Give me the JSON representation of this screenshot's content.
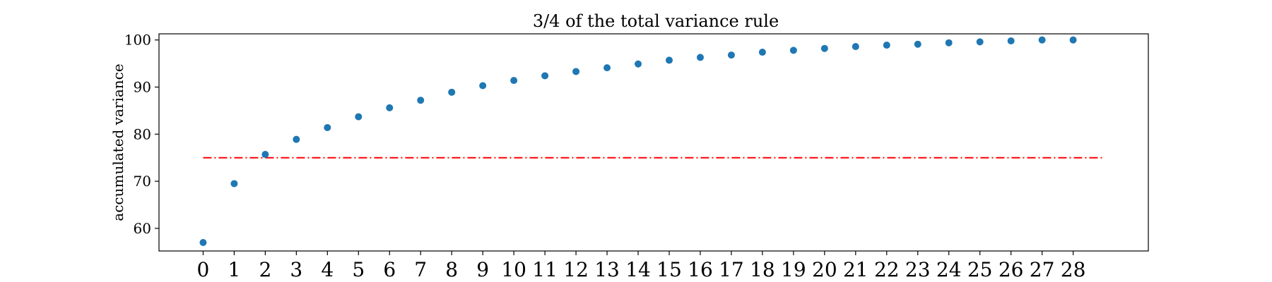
{
  "chart_data": {
    "type": "scatter",
    "title": "3/4 of the total variance rule",
    "xlabel": "",
    "ylabel": "accumulated variance",
    "x": [
      0,
      1,
      2,
      3,
      4,
      5,
      6,
      7,
      8,
      9,
      10,
      11,
      12,
      13,
      14,
      15,
      16,
      17,
      18,
      19,
      20,
      21,
      22,
      23,
      24,
      25,
      26,
      27,
      28
    ],
    "y": [
      57.0,
      69.5,
      75.7,
      78.9,
      81.4,
      83.7,
      85.6,
      87.2,
      88.9,
      90.3,
      91.4,
      92.4,
      93.3,
      94.1,
      94.9,
      95.7,
      96.3,
      96.8,
      97.4,
      97.8,
      98.2,
      98.6,
      98.9,
      99.1,
      99.4,
      99.6,
      99.8,
      100.0,
      100.0
    ],
    "x_ticks": [
      0,
      1,
      2,
      3,
      4,
      5,
      6,
      7,
      8,
      9,
      10,
      11,
      12,
      13,
      14,
      15,
      16,
      17,
      18,
      19,
      20,
      21,
      22,
      23,
      24,
      25,
      26,
      27,
      28
    ],
    "y_ticks": [
      60,
      70,
      80,
      90,
      100
    ],
    "xlim": [
      -1.42,
      30.42
    ],
    "ylim": [
      55.2,
      101.3
    ],
    "threshold": {
      "value": 75,
      "x_start": 0,
      "x_end": 29,
      "color": "#ff0000",
      "style": "dash-dot"
    },
    "point_color": "#1f77b4",
    "grid": false,
    "legend": "none"
  }
}
